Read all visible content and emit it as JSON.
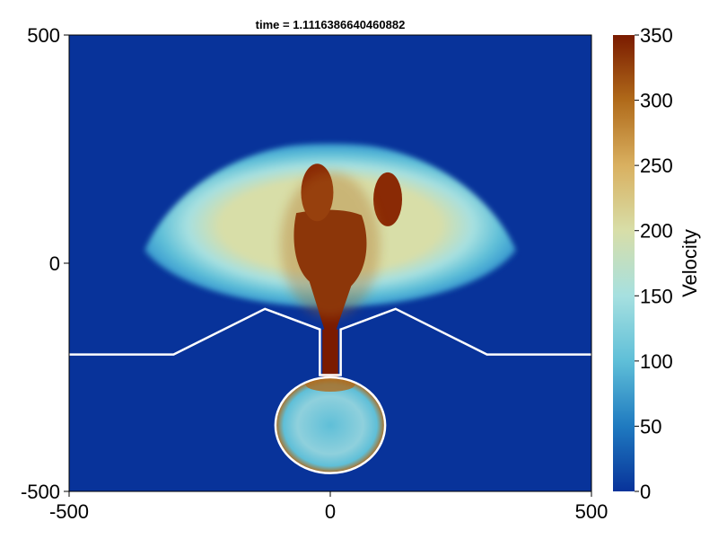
{
  "chart_data": {
    "type": "heatmap",
    "title": "time = 1.1116386640460882",
    "xlim": [
      -500,
      500
    ],
    "ylim": [
      -500,
      500
    ],
    "x_ticks": [
      "-500",
      "0",
      "500"
    ],
    "y_ticks": [
      "-500",
      "0",
      "500"
    ],
    "xlabel": "",
    "ylabel": "",
    "colorbar": {
      "label": "Velocity",
      "range": [
        0,
        350
      ],
      "ticks": [
        "0",
        "50",
        "100",
        "150",
        "200",
        "250",
        "300",
        "350"
      ],
      "colormap": [
        "#08339a",
        "#1f7ac0",
        "#5fbfd8",
        "#a6e0e0",
        "#d8dea8",
        "#d9b060",
        "#b06a1a",
        "#7a1b00"
      ]
    },
    "boundary_color": "#ffffff",
    "background_color": "#08339a",
    "boundary_polyline": [
      [
        -500,
        -200
      ],
      [
        -300,
        -200
      ],
      [
        -125,
        -100
      ],
      [
        -20,
        -145
      ],
      [
        -20,
        -245
      ],
      [
        20,
        -245
      ],
      [
        20,
        -145
      ],
      [
        125,
        -100
      ],
      [
        300,
        -200
      ],
      [
        500,
        -200
      ]
    ],
    "chamber": {
      "center": [
        0,
        -355
      ],
      "radius_x": 105,
      "radius_y": 105
    },
    "blast_front": {
      "center": [
        0,
        -100
      ],
      "radius": 380,
      "clip_below_y": -100
    }
  }
}
